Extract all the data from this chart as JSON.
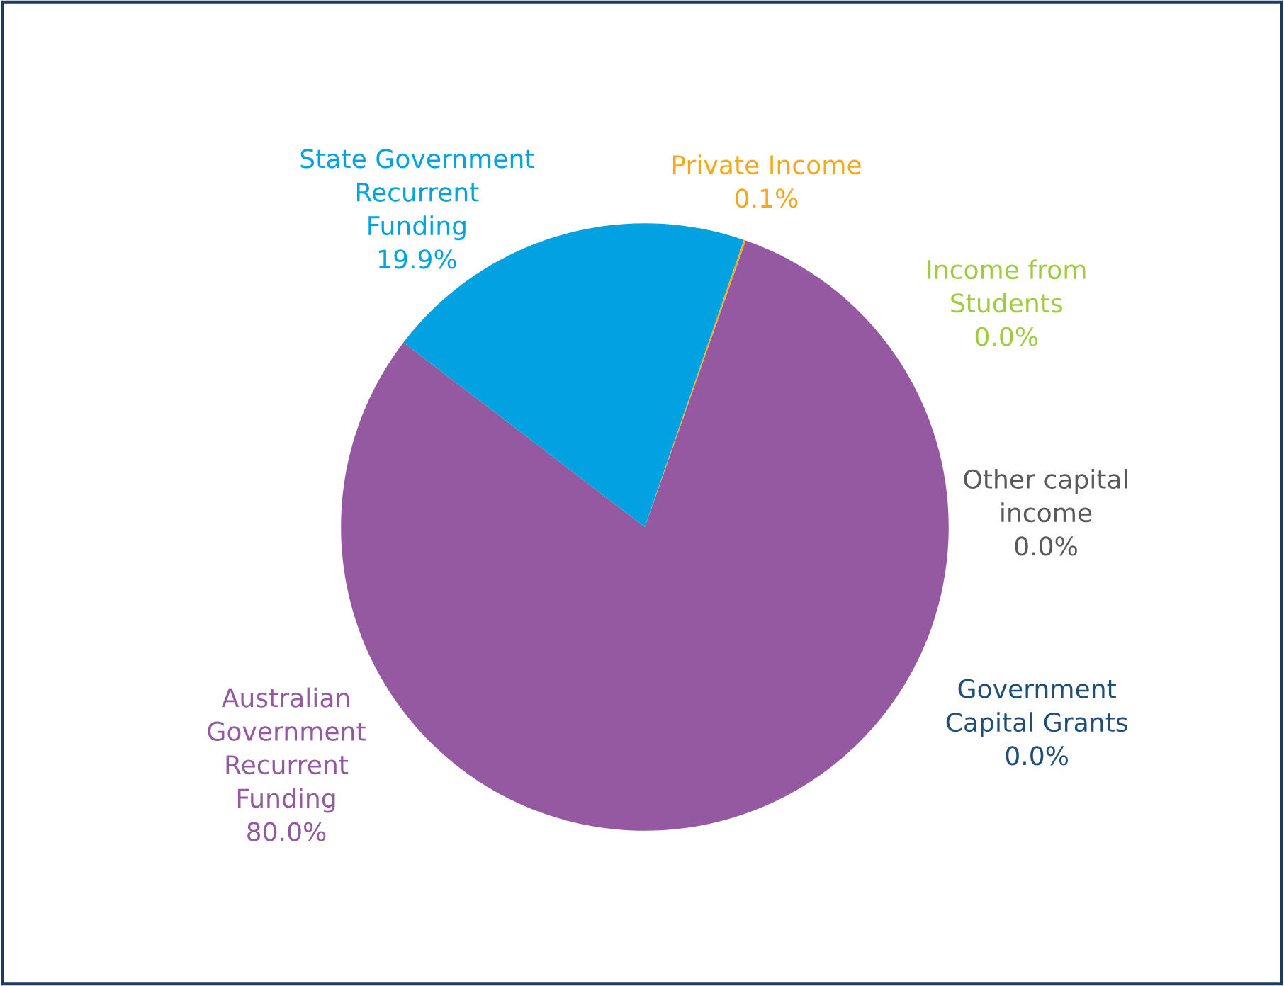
{
  "chart_data": {
    "type": "pie",
    "categories": [
      "Australian\nGovernment\nRecurrent\nFunding",
      "State Government\nRecurrent\nFunding",
      "Private Income",
      "Income from\nStudents",
      "Other capital\nincome",
      "Government\nCapital Grants"
    ],
    "values": [
      80.0,
      19.9,
      0.1,
      0.0,
      0.0,
      0.0
    ],
    "value_labels": [
      "80.0%",
      "19.9%",
      "0.1%",
      "0.0%",
      "0.0%",
      "0.0%"
    ],
    "colors": [
      "#9459a1",
      "#00a3e0",
      "#f5a81c",
      "#9dcd3f",
      "#595959",
      "#1f4e79"
    ]
  }
}
